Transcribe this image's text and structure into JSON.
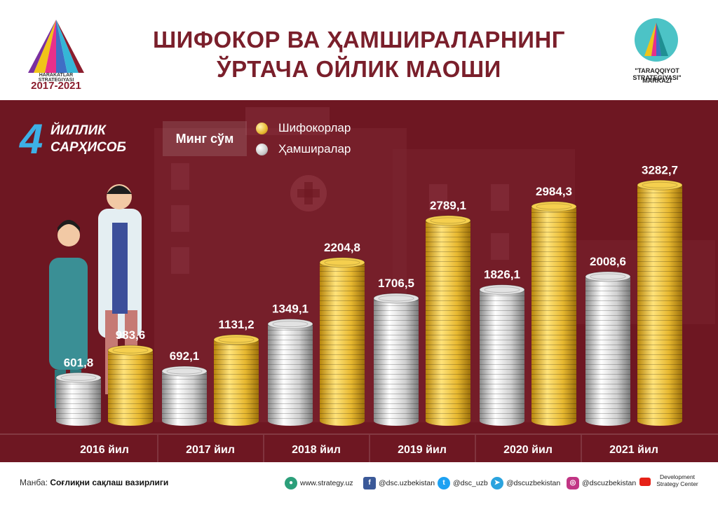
{
  "header": {
    "title_line1": "ШИФОКОР ВА ҲАМШИРАЛАРНИНГ",
    "title_line2": "ЎРТАЧА ОЙЛИК МАОШИ",
    "logo_left_caption": "HARAKATLAR STRATEGIYASI",
    "logo_left_years": "2017-2021",
    "logo_right_line1": "\"TARAQQIYOT STRATEGIYASI\"",
    "logo_right_line2": "MARKAZI"
  },
  "badge": {
    "number": "4",
    "line1": "ЙИЛЛИК",
    "line2": "САРҲИСОБ"
  },
  "unit_label": "Минг сўм",
  "colors": {
    "background": "#6e1722",
    "gold": "#e7b830",
    "silver": "#c9c9c9",
    "accent": "#3db0e6"
  },
  "chart_data": {
    "type": "bar",
    "categories": [
      "2016 йил",
      "2017 йил",
      "2018 йил",
      "2019 йил",
      "2020 йил",
      "2021 йил"
    ],
    "series": [
      {
        "name": "Шифокорлар",
        "values": [
          983.6,
          1131.2,
          2204.8,
          2789.1,
          2984.3,
          3282.7
        ],
        "labels": [
          "983,6",
          "1131,2",
          "2204,8",
          "2789,1",
          "2984,3",
          "3282,7"
        ],
        "color": "gold"
      },
      {
        "name": "Ҳамширалар",
        "values": [
          601.8,
          692.1,
          1349.1,
          1706.5,
          1826.1,
          2008.6
        ],
        "labels": [
          "601,8",
          "692,1",
          "1349,1",
          "1706,5",
          "1826,1",
          "2008,6"
        ],
        "color": "silver"
      }
    ],
    "ylim": [
      0,
      3500
    ],
    "legend": "top"
  },
  "footer": {
    "source_prefix": "Манба:",
    "source_name": "Соғлиқни сақлаш вазирлиги",
    "website": "www.strategy.uz",
    "facebook": "@dsc.uzbekistan",
    "twitter": "@dsc_uzb",
    "telegram": "@dscuzbekistan",
    "instagram": "@dscuzbekistan",
    "dsc_line1": "Development",
    "dsc_line2": "Strategy Center"
  }
}
